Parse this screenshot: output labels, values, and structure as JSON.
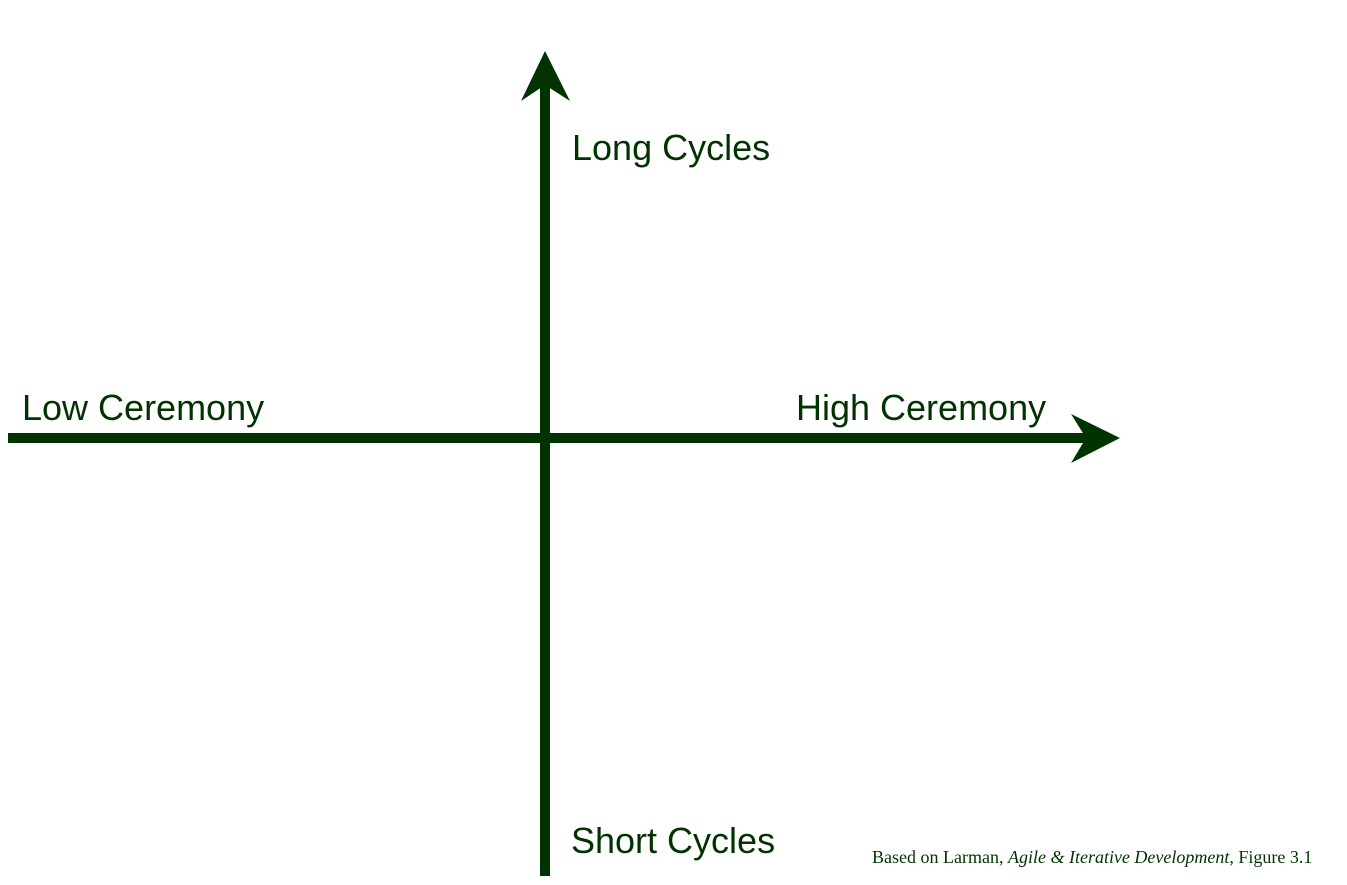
{
  "diagram": {
    "axis_color": "#003300",
    "vertical_axis": {
      "top_label": "Long Cycles",
      "bottom_label": "Short Cycles"
    },
    "horizontal_axis": {
      "left_label": "Low Ceremony",
      "right_label": "High Ceremony"
    },
    "citation": {
      "prefix": "Based on Larman, ",
      "work": "Agile & Iterative Development",
      "suffix": ", Figure 3.1"
    }
  }
}
